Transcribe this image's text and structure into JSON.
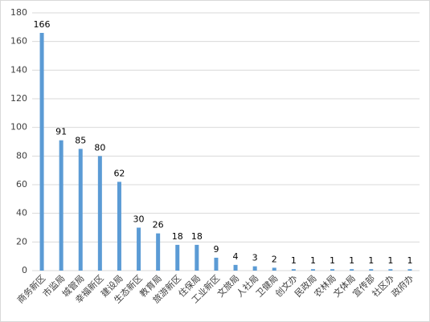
{
  "chart_data": {
    "type": "bar",
    "categories": [
      "商务新区",
      "市监局",
      "城管局",
      "幸福新区",
      "建设局",
      "生态新区",
      "教育局",
      "旅游新区",
      "住保局",
      "工业新区",
      "文旅局",
      "人社局",
      "卫健局",
      "创文办",
      "民政局",
      "农林局",
      "文体局",
      "宣传部",
      "社区办",
      "政府办"
    ],
    "values": [
      166,
      91,
      85,
      80,
      62,
      30,
      26,
      18,
      18,
      9,
      4,
      3,
      2,
      1,
      1,
      1,
      1,
      1,
      1,
      1
    ],
    "color": "#5b9bd5",
    "ylim": [
      0,
      180
    ],
    "yticks": [
      0,
      20,
      40,
      60,
      80,
      100,
      120,
      140,
      160,
      180
    ],
    "grid": true
  }
}
